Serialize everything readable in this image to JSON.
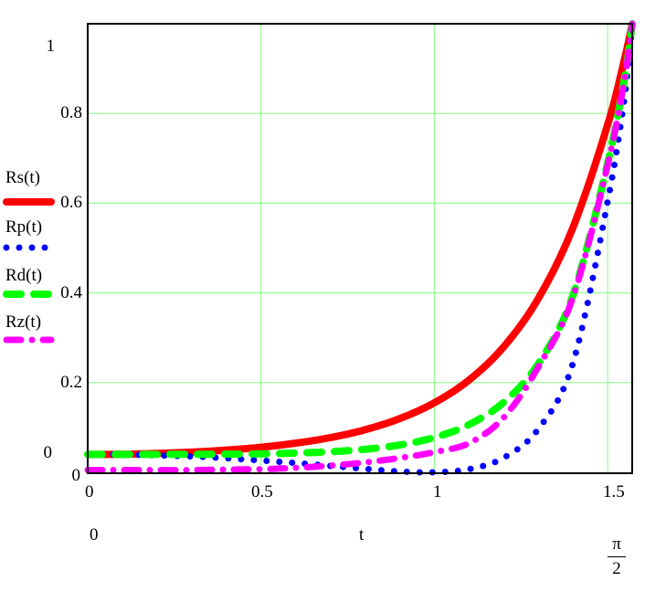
{
  "chart_data": {
    "type": "line",
    "title": "",
    "xlabel": "t",
    "ylabel": "",
    "xlim": [
      0,
      1.5708
    ],
    "ylim": [
      0,
      1
    ],
    "grid": true,
    "x_ticks": [
      "0",
      "0.5",
      "1",
      "1.5"
    ],
    "y_ticks": [
      "0",
      "0.2",
      "0.4",
      "0.6",
      "0.8",
      "1"
    ],
    "x_range_labels": {
      "min": "0",
      "var": "t",
      "max_num": "π",
      "max_den": "2"
    },
    "y_range_labels": {
      "min": "0",
      "max": "1"
    },
    "legend_position": "left",
    "x": [
      0,
      0.1,
      0.2,
      0.3,
      0.4,
      0.5,
      0.6,
      0.7,
      0.8,
      0.9,
      1.0,
      1.1,
      1.2,
      1.3,
      1.4,
      1.5,
      1.55,
      1.5708
    ],
    "series": [
      {
        "name": "Rs(t)",
        "color": "#ff0000",
        "style": "solid",
        "values": [
          0.04,
          0.0402,
          0.0422,
          0.0451,
          0.0496,
          0.0559,
          0.065,
          0.0774,
          0.0949,
          0.1198,
          0.155,
          0.2057,
          0.2797,
          0.3877,
          0.5459,
          0.7747,
          0.9257,
          1.0
        ]
      },
      {
        "name": "Rp(t)",
        "color": "#0000ff",
        "style": "dotted",
        "values": [
          0.04,
          0.0398,
          0.0379,
          0.0353,
          0.0314,
          0.0264,
          0.0208,
          0.0143,
          0.0078,
          0.0019,
          0.0001,
          0.007,
          0.0324,
          0.0965,
          0.2436,
          0.6032,
          0.8434,
          1.0
        ]
      },
      {
        "name": "Rd(t)",
        "color": "#00ff00",
        "style": "dashed",
        "values": [
          0.04,
          0.04,
          0.04,
          0.0402,
          0.0405,
          0.0412,
          0.0429,
          0.0459,
          0.0514,
          0.0609,
          0.0776,
          0.1064,
          0.1561,
          0.2421,
          0.3948,
          0.689,
          0.8846,
          1.0
        ]
      },
      {
        "name": "Rz(t)",
        "color": "#ff00ff",
        "style": "dashdot",
        "values": [
          0.005,
          0.005,
          0.005,
          0.005,
          0.006,
          0.007,
          0.01,
          0.015,
          0.022,
          0.032,
          0.045,
          0.065,
          0.122,
          0.235,
          0.39,
          0.685,
          0.882,
          1.0
        ]
      }
    ]
  },
  "axes": {
    "y_tick_labels": [
      "1",
      "0.8",
      "0.6",
      "0.4",
      "0.2",
      "0"
    ],
    "y_min_label": "0",
    "x_tick_labels": [
      "0",
      "0.5",
      "1",
      "1.5"
    ],
    "x_min_label": "0",
    "x_var_label": "t",
    "x_max_num": "π",
    "x_max_den": "2"
  },
  "legend": [
    {
      "label": "Rs(t)"
    },
    {
      "label": "Rp(t)"
    },
    {
      "label": "Rd(t)"
    },
    {
      "label": "Rz(t)"
    }
  ],
  "colors": {
    "grid": "#80ff80",
    "frame": "#000000",
    "Rs": "#ff0000",
    "Rp": "#0000ff",
    "Rd": "#00ff00",
    "Rz": "#ff00ff"
  }
}
